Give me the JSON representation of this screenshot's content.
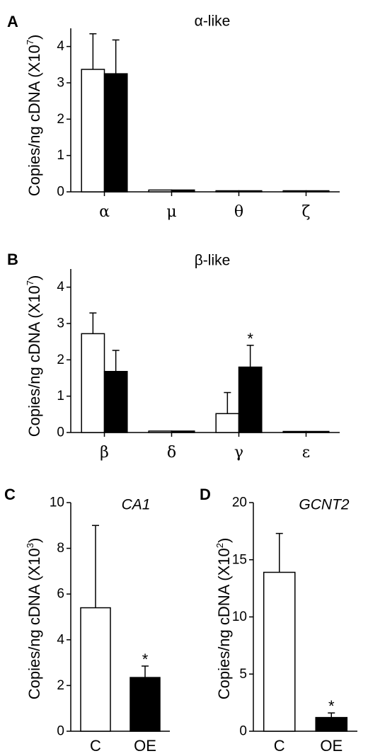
{
  "chart_data": [
    {
      "panel": "A",
      "type": "bar",
      "title": "α-like",
      "ylabel": "Copies/ng cDNA (X10",
      "ylabel_exp": "7",
      "ylim": [
        0,
        4.5
      ],
      "yticks": [
        0,
        1,
        2,
        3,
        4
      ],
      "categories": [
        "α",
        "μ",
        "θ",
        "ζ"
      ],
      "series": [
        {
          "fill": "#ffffff",
          "values": [
            3.37,
            0.05,
            0.01,
            0.01
          ],
          "errors": [
            0.98,
            0.0,
            0.0,
            0.0
          ]
        },
        {
          "fill": "#000000",
          "values": [
            3.25,
            0.05,
            0.01,
            0.02
          ],
          "errors": [
            0.93,
            0.0,
            0.0,
            0.0
          ]
        }
      ],
      "significance": [
        "",
        "",
        "",
        ""
      ]
    },
    {
      "panel": "B",
      "type": "bar",
      "title": "β-like",
      "ylabel": "Copies/ng cDNA (X10",
      "ylabel_exp": "7",
      "ylim": [
        0,
        4.5
      ],
      "yticks": [
        0,
        1,
        2,
        3,
        4
      ],
      "categories": [
        "β",
        "δ",
        "γ",
        "ε"
      ],
      "series": [
        {
          "fill": "#ffffff",
          "values": [
            2.72,
            0.04,
            0.52,
            0.01
          ],
          "errors": [
            0.57,
            0.0,
            0.58,
            0.0
          ]
        },
        {
          "fill": "#000000",
          "values": [
            1.68,
            0.04,
            1.8,
            0.01
          ],
          "errors": [
            0.58,
            0.0,
            0.6,
            0.0
          ]
        }
      ],
      "significance": [
        "",
        "",
        "*",
        ""
      ]
    },
    {
      "panel": "C",
      "type": "bar",
      "title": "CA1",
      "ylabel": "Copies/ng cDNA (X10",
      "ylabel_exp": "3",
      "ylim": [
        0,
        10
      ],
      "yticks": [
        0,
        2,
        4,
        6,
        8,
        10
      ],
      "categories": [
        "C",
        "OE"
      ],
      "values": [
        5.4,
        2.35
      ],
      "errors": [
        3.6,
        0.5
      ],
      "fills": [
        "#ffffff",
        "#000000"
      ],
      "significance": [
        "",
        "*"
      ]
    },
    {
      "panel": "D",
      "type": "bar",
      "title": "GCNT2",
      "ylabel": "Copies/ng cDNA (X10",
      "ylabel_exp": "2",
      "ylim": [
        0,
        20
      ],
      "yticks": [
        0,
        5,
        10,
        15,
        20
      ],
      "categories": [
        "C",
        "OE"
      ],
      "values": [
        13.9,
        1.2
      ],
      "errors": [
        3.4,
        0.4
      ],
      "fills": [
        "#ffffff",
        "#000000"
      ],
      "significance": [
        "",
        "*"
      ]
    }
  ]
}
